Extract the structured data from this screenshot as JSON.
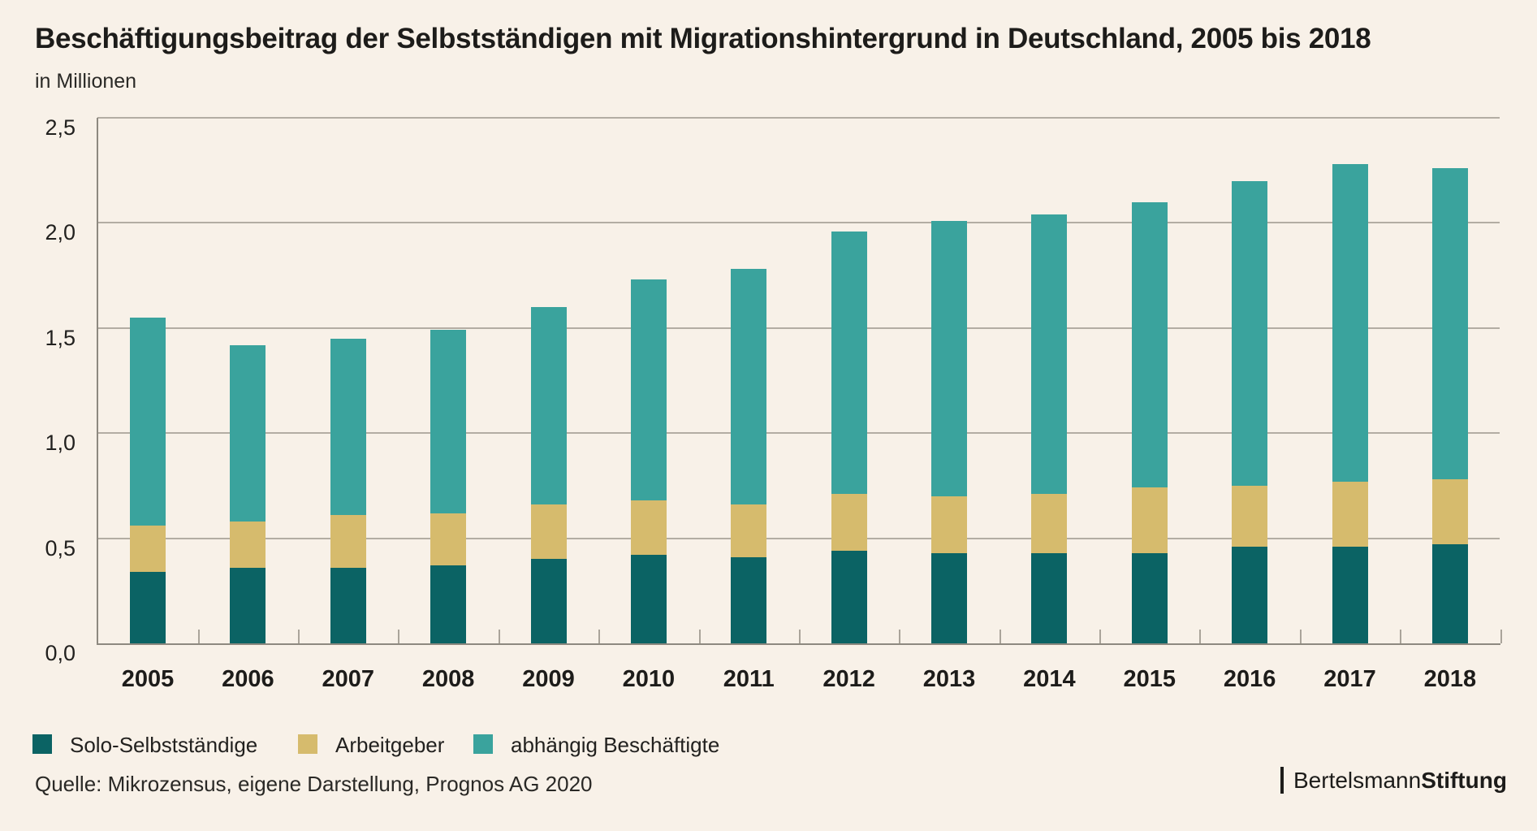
{
  "header": {
    "title": "Beschäftigungsbeitrag der Selbstständigen mit Migrationshintergrund in Deutschland, 2005 bis 2018",
    "subtitle": "in Millionen"
  },
  "source": "Quelle: Mikrozensus, eigene Darstellung, Prognos AG 2020",
  "logo": {
    "prefix": "Bertelsmann",
    "suffix": "Stiftung",
    "divider": "|"
  },
  "colors": {
    "background": "#f8f1e8",
    "solo_selbststaendige": "#0b6364",
    "arbeitgeber": "#d6bb6d",
    "abhaengig_beschaeftigte": "#3aa39d",
    "gridline": "#b3ada3",
    "axis": "#8e8980",
    "text": "#1d1c1a"
  },
  "chart_data": {
    "type": "bar",
    "stacked": true,
    "title": "Beschäftigungsbeitrag der Selbstständigen mit Migrationshintergrund in Deutschland, 2005 bis 2018",
    "unit_label": "in Millionen",
    "categories": [
      "2005",
      "2006",
      "2007",
      "2008",
      "2009",
      "2010",
      "2011",
      "2012",
      "2013",
      "2014",
      "2015",
      "2016",
      "2017",
      "2018"
    ],
    "series": [
      {
        "name": "Solo-Selbstständige",
        "color": "#0b6364",
        "values": [
          0.34,
          0.36,
          0.36,
          0.37,
          0.4,
          0.42,
          0.41,
          0.44,
          0.43,
          0.43,
          0.43,
          0.46,
          0.46,
          0.47
        ]
      },
      {
        "name": "Arbeitgeber",
        "color": "#d6bb6d",
        "values": [
          0.22,
          0.22,
          0.25,
          0.25,
          0.26,
          0.26,
          0.25,
          0.27,
          0.27,
          0.28,
          0.31,
          0.29,
          0.31,
          0.31
        ]
      },
      {
        "name": "abhängig Beschäftigte",
        "color": "#3aa39d",
        "values": [
          0.99,
          0.84,
          0.84,
          0.87,
          0.94,
          1.05,
          1.12,
          1.25,
          1.31,
          1.33,
          1.36,
          1.45,
          1.51,
          1.48
        ]
      }
    ],
    "totals": [
      1.55,
      1.42,
      1.45,
      1.49,
      1.6,
      1.73,
      1.78,
      1.96,
      2.01,
      2.04,
      2.1,
      2.2,
      2.28,
      2.26
    ],
    "ylim": [
      0,
      2.5
    ],
    "ytick_step": 0.5,
    "ytick_labels": [
      "0,0",
      "0,5",
      "1,0",
      "1,5",
      "2,0",
      "2,5"
    ],
    "grid": true,
    "legend_position": "bottom-left"
  }
}
